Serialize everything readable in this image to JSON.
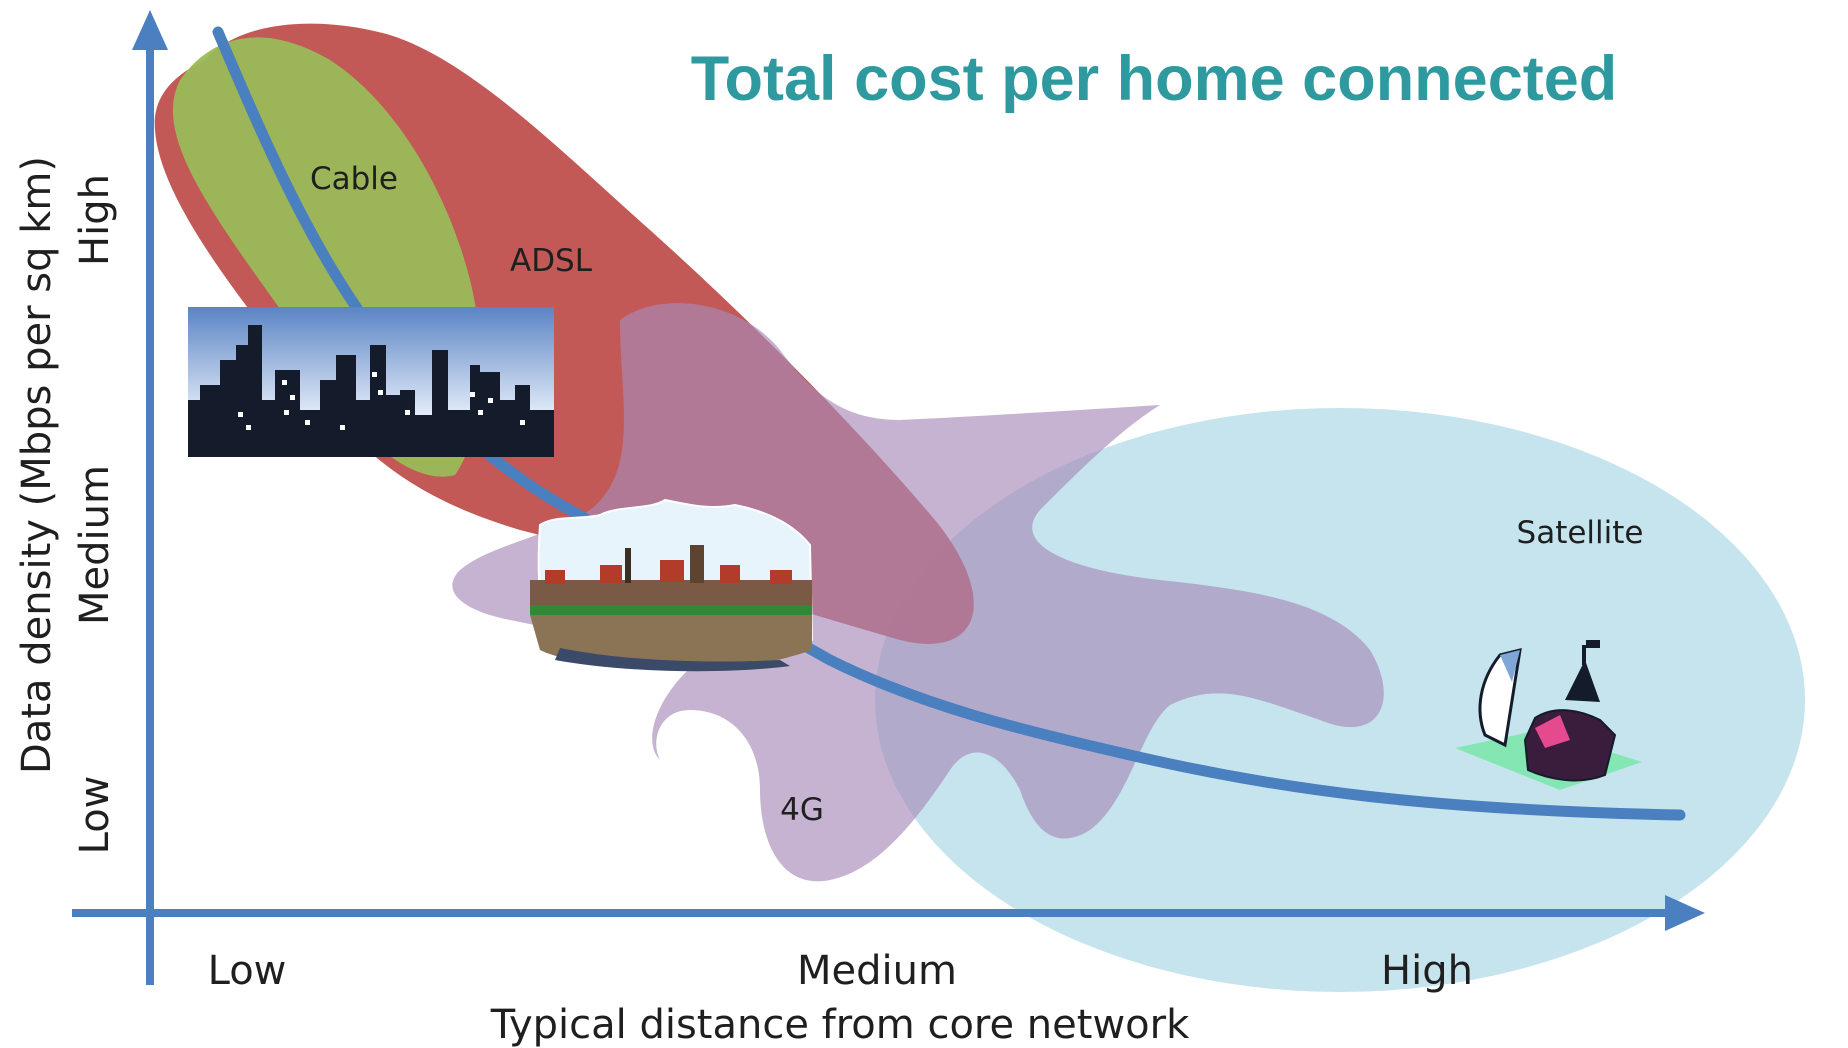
{
  "title": "Total cost per home connected",
  "axes": {
    "x_title": "Typical distance from core network",
    "y_title": "Data density (Mbps per sq km)",
    "x_ticks": [
      "Low",
      "Medium",
      "High"
    ],
    "y_ticks": [
      "Low",
      "Medium",
      "High"
    ]
  },
  "regions": {
    "cable": "Cable",
    "adsl": "ADSL",
    "fourg": "4G",
    "satellite": "Satellite"
  },
  "colors": {
    "title": "#2e9aa0",
    "axis": "#4a7fc0",
    "curve": "#4a7fc0",
    "cable": "#9aba59",
    "adsl": "#c0504d",
    "fourg": "#b9a1c8",
    "satellite": "#b7dde8"
  },
  "icons": [
    "city-skyline-icon",
    "town-icon",
    "rural-satellite-dish-icon"
  ]
}
